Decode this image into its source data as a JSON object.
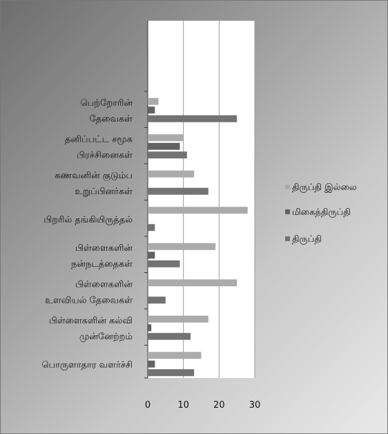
{
  "chart_data": {
    "type": "bar",
    "orientation": "horizontal",
    "categories": [
      [
        "பெற்றோரின்",
        "தேவைகள்"
      ],
      [
        "தனிப்பட்ட சமூக",
        "பிரச்சினைகள்"
      ],
      [
        "கணவனின் குடும்ப",
        "உறுப்பினர்கள்"
      ],
      [
        "பிறரில் தங்கியிருத்தல்"
      ],
      [
        "பிள்ளைகளின்",
        "நன்நடத்தைகள்"
      ],
      [
        "பிள்ளைகளின்",
        "உளவியல் தேவைகள்"
      ],
      [
        "பிள்ளைகளின் கல்வி",
        "முன்னேற்றம்"
      ],
      [
        "பொருளாதார வளர்ச்சி"
      ]
    ],
    "series": [
      {
        "name": "திருப்தி இல்லை",
        "color": "#ababab",
        "values": [
          3,
          10,
          13,
          28,
          19,
          25,
          17,
          15
        ]
      },
      {
        "name": "மிகைத்திருப்தி",
        "color": "#626262",
        "values": [
          2,
          9,
          0,
          0,
          2,
          0,
          1,
          2
        ]
      },
      {
        "name": "திருப்தி",
        "color": "#737373",
        "values": [
          25,
          11,
          17,
          2,
          9,
          5,
          12,
          13
        ]
      }
    ],
    "xlim": [
      0,
      30
    ],
    "xticks": [
      0,
      10,
      20,
      30
    ],
    "grid": true,
    "legend": "right"
  }
}
